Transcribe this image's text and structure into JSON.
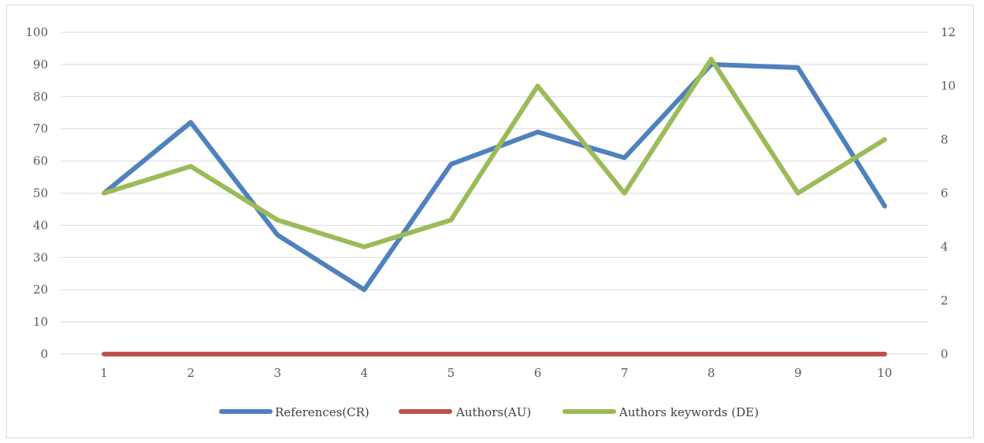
{
  "chart_data": {
    "type": "line",
    "categories": [
      "1",
      "2",
      "3",
      "4",
      "5",
      "6",
      "7",
      "8",
      "9",
      "10"
    ],
    "y_left": {
      "min": 0,
      "max": 100,
      "step": 10,
      "ticks": [
        "0",
        "10",
        "20",
        "30",
        "40",
        "50",
        "60",
        "70",
        "80",
        "90",
        "100"
      ]
    },
    "y_right": {
      "min": 0,
      "max": 12,
      "step": 2,
      "ticks": [
        "0",
        "2",
        "4",
        "6",
        "8",
        "10",
        "12"
      ]
    },
    "grid": true,
    "legend_position": "bottom",
    "series": [
      {
        "name": "References(CR)",
        "axis": "left",
        "color": "#4f81bd",
        "values": [
          50,
          72,
          37,
          20,
          59,
          69,
          61,
          90,
          89,
          46
        ]
      },
      {
        "name": "Authors(AU)",
        "axis": "left",
        "color": "#c0504d",
        "values": [
          0,
          0,
          0,
          0,
          0,
          0,
          0,
          0,
          0,
          0
        ]
      },
      {
        "name": "Authors keywords (DE)",
        "axis": "right",
        "color": "#9bbb59",
        "values": [
          6,
          7,
          5,
          4,
          5,
          10,
          6,
          11,
          6,
          8
        ]
      }
    ]
  }
}
